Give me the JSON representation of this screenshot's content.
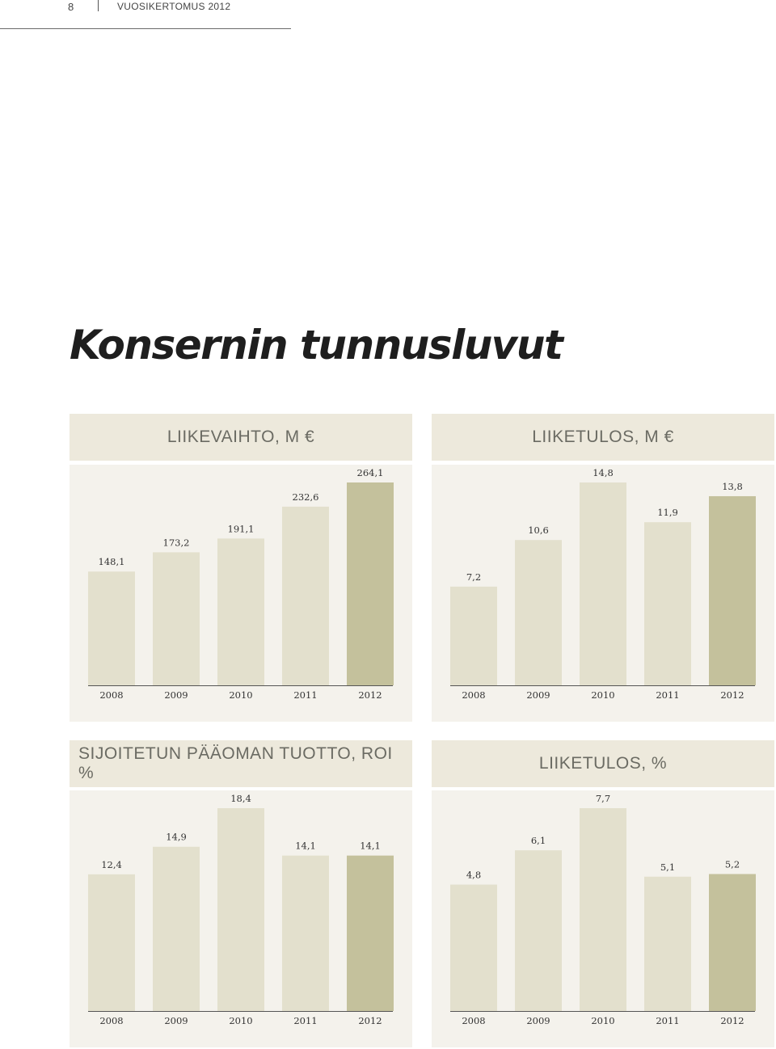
{
  "header": {
    "page_number": "8",
    "report_title": "VUOSIKERTOMUS 2012"
  },
  "page_title": "Konsernin tunnusluvut",
  "colors": {
    "bar": "#e3e0cd",
    "bar_highlight": "#c4c19c",
    "panel": "#f4f2ec",
    "title_box": "#ede9dc",
    "axis": "#555555"
  },
  "chart_data": [
    {
      "type": "bar",
      "title": "LIIKEVAIHTO, M €",
      "categories": [
        "2008",
        "2009",
        "2010",
        "2011",
        "2012"
      ],
      "values": [
        148.1,
        173.2,
        191.1,
        232.6,
        264.1
      ],
      "labels": [
        "148,1",
        "173,2",
        "191,1",
        "232,6",
        "264,1"
      ],
      "ylim": [
        0,
        264.1
      ]
    },
    {
      "type": "bar",
      "title": "LIIKETULOS, M €",
      "categories": [
        "2008",
        "2009",
        "2010",
        "2011",
        "2012"
      ],
      "values": [
        7.2,
        10.6,
        14.8,
        11.9,
        13.8
      ],
      "labels": [
        "7,2",
        "10,6",
        "14,8",
        "11,9",
        "13,8"
      ],
      "ylim": [
        0,
        14.8
      ]
    },
    {
      "type": "bar",
      "title": "SIJOITETUN PÄÄOMAN TUOTTO, ROI %",
      "categories": [
        "2008",
        "2009",
        "2010",
        "2011",
        "2012"
      ],
      "values": [
        12.4,
        14.9,
        18.4,
        14.1,
        14.1
      ],
      "labels": [
        "12,4",
        "14,9",
        "18,4",
        "14,1",
        "14,1"
      ],
      "ylim": [
        0,
        18.4
      ]
    },
    {
      "type": "bar",
      "title": "LIIKETULOS, %",
      "categories": [
        "2008",
        "2009",
        "2010",
        "2011",
        "2012"
      ],
      "values": [
        4.8,
        6.1,
        7.7,
        5.1,
        5.2
      ],
      "labels": [
        "4,8",
        "6,1",
        "7,7",
        "5,1",
        "5,2"
      ],
      "ylim": [
        0,
        7.7
      ]
    }
  ]
}
